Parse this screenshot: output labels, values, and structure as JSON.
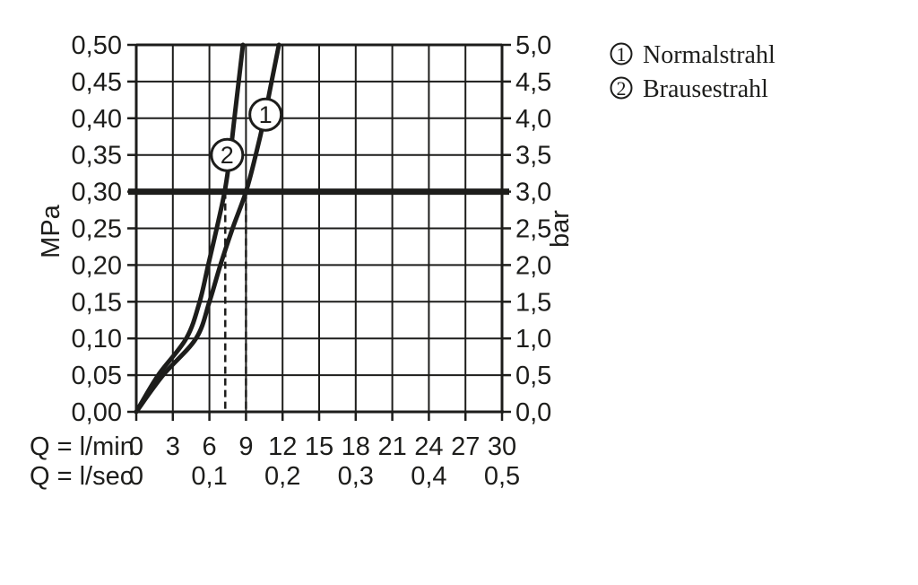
{
  "colors": {
    "ink": "#1d1d1b",
    "background": "#ffffff"
  },
  "legend": {
    "items": [
      {
        "symbol": "1",
        "label": "Normalstrahl"
      },
      {
        "symbol": "2",
        "label": "Brausestrahl"
      }
    ]
  },
  "chart_data": {
    "type": "line",
    "x_axis": {
      "label_lmin": "Q = l/min",
      "label_lsec": "Q = l/sec",
      "ticks_lmin": [
        "0",
        "3",
        "6",
        "9",
        "12",
        "15",
        "18",
        "21",
        "24",
        "27",
        "30"
      ],
      "ticks_lsec": [
        {
          "value": "0",
          "at_lmin": 0
        },
        {
          "value": "0,1",
          "at_lmin": 6
        },
        {
          "value": "0,2",
          "at_lmin": 12
        },
        {
          "value": "0,3",
          "at_lmin": 18
        },
        {
          "value": "0,4",
          "at_lmin": 24
        },
        {
          "value": "0,5",
          "at_lmin": 30
        }
      ],
      "range_lmin": [
        0,
        30
      ]
    },
    "y_axis_left": {
      "label": "MPa",
      "ticks": [
        "0,00",
        "0,05",
        "0,10",
        "0,15",
        "0,20",
        "0,25",
        "0,30",
        "0,35",
        "0,40",
        "0,45",
        "0,50"
      ],
      "range_mpa": [
        0,
        0.5
      ]
    },
    "y_axis_right": {
      "label": "bar",
      "ticks": [
        "0,0",
        "0,5",
        "1,0",
        "1,5",
        "2,0",
        "2,5",
        "3,0",
        "3,5",
        "4,0",
        "4,5",
        "5,0"
      ],
      "range_bar": [
        0,
        5
      ]
    },
    "grid": true,
    "reference_line_bar": 3.0,
    "dashed_guides_lmin": [
      7.3,
      9.0
    ],
    "series": [
      {
        "id": "1",
        "name": "Normalstrahl",
        "points_q_bar": [
          [
            0,
            0
          ],
          [
            2.2,
            0.5
          ],
          [
            4.9,
            1.0
          ],
          [
            6.0,
            1.5
          ],
          [
            6.9,
            2.0
          ],
          [
            7.9,
            2.5
          ],
          [
            9.0,
            3.0
          ],
          [
            9.8,
            3.5
          ],
          [
            10.5,
            4.0
          ],
          [
            11.1,
            4.5
          ],
          [
            11.7,
            5.0
          ]
        ],
        "badge": {
          "q": 10.6,
          "bar": 4.05
        }
      },
      {
        "id": "2",
        "name": "Brausestrahl",
        "points_q_bar": [
          [
            0,
            0
          ],
          [
            1.8,
            0.5
          ],
          [
            4.1,
            1.0
          ],
          [
            5.2,
            1.5
          ],
          [
            5.9,
            2.0
          ],
          [
            6.6,
            2.5
          ],
          [
            7.25,
            3.0
          ],
          [
            7.7,
            3.5
          ],
          [
            8.05,
            4.0
          ],
          [
            8.4,
            4.5
          ],
          [
            8.75,
            5.0
          ]
        ],
        "badge": {
          "q": 7.45,
          "bar": 3.5
        }
      }
    ]
  }
}
